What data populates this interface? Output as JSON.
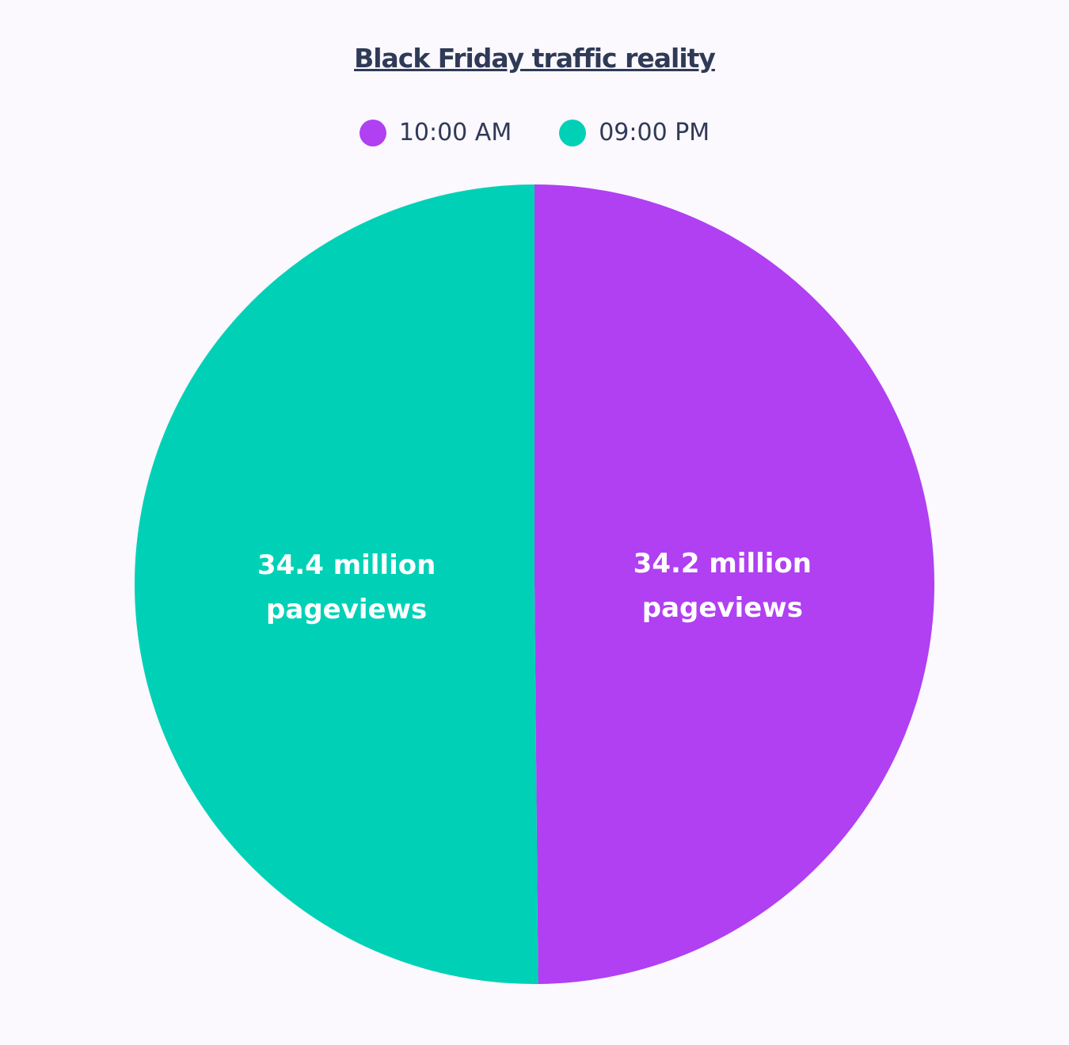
{
  "chart_data": {
    "type": "pie",
    "title": "Black Friday traffic reality",
    "categories": [
      "10:00 AM",
      "09:00 PM"
    ],
    "values": [
      34.2,
      34.4
    ],
    "value_labels": [
      "34.2 million pageviews",
      "34.4 million pageviews"
    ],
    "colors": [
      "#b040f2",
      "#00d1b6"
    ]
  }
}
